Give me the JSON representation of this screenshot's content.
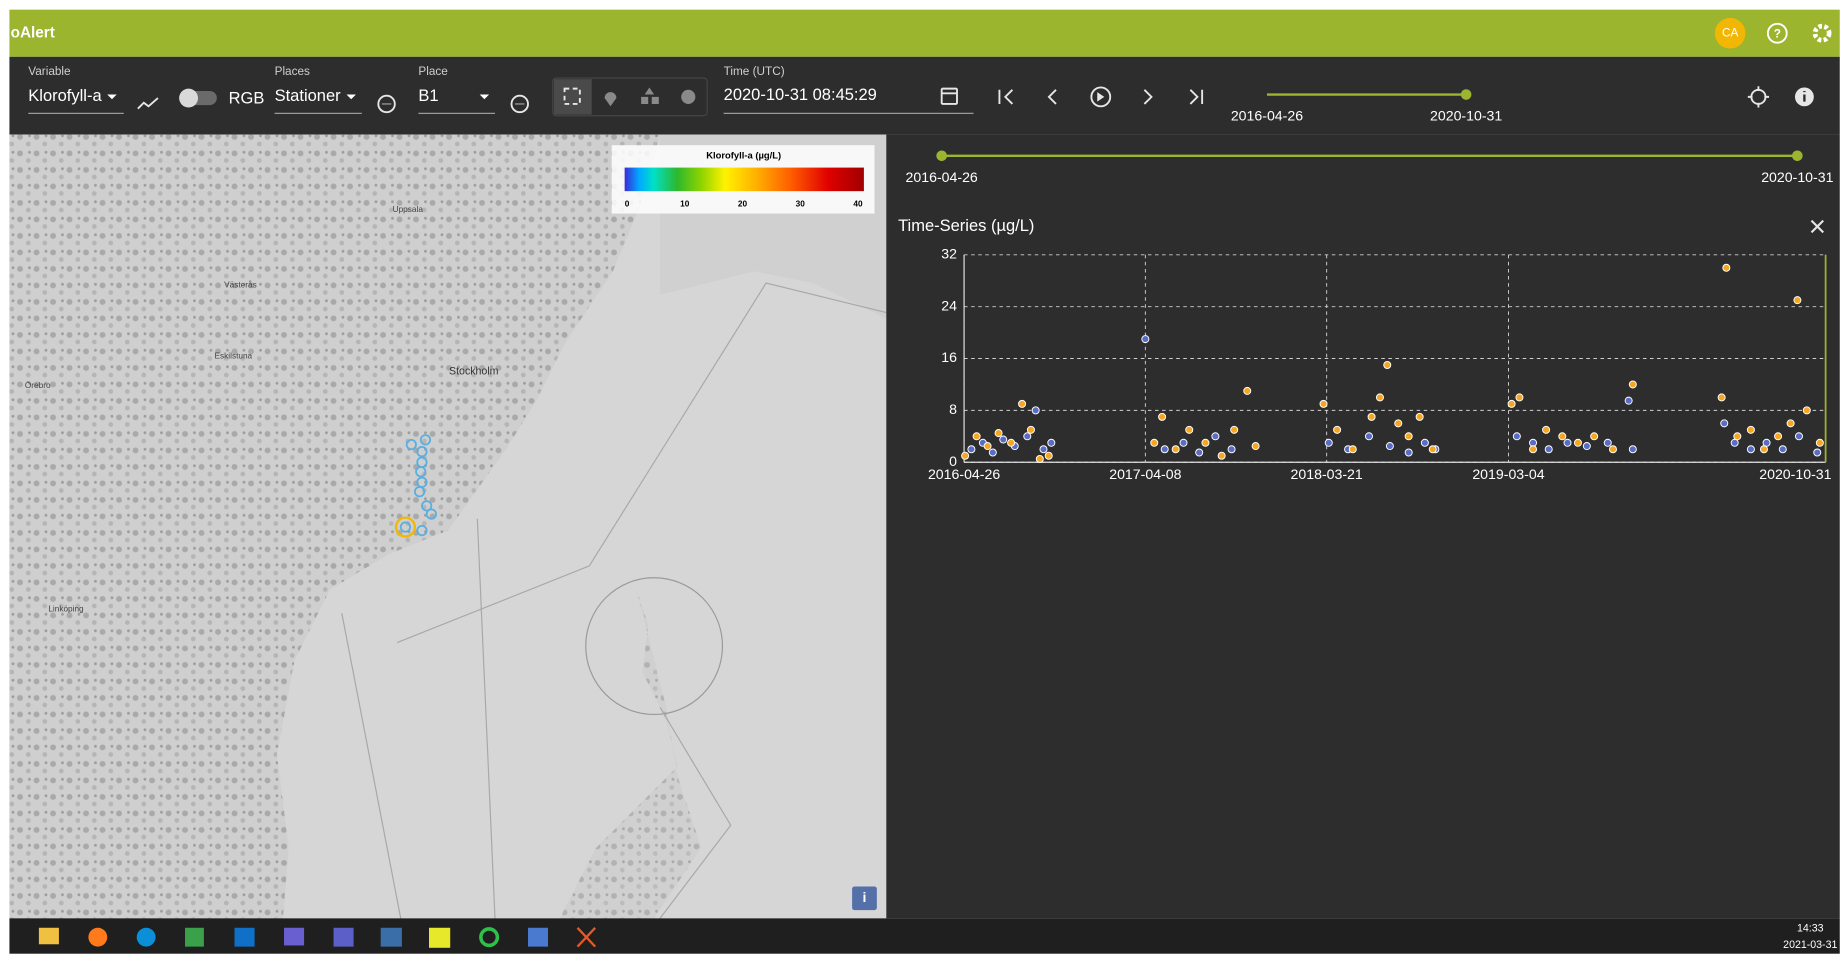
{
  "app": {
    "title": "oAlert",
    "avatar": "CA"
  },
  "toolbar": {
    "variable_label": "Variable",
    "variable": "Klorofyll-a",
    "rgb": "RGB",
    "places_label": "Places",
    "places": "Stationer",
    "place_label": "Place",
    "place": "B1",
    "time_label": "Time (UTC)",
    "time": "2020-10-31 08:45:29",
    "range_start": "2016-04-26",
    "range_end": "2020-10-31"
  },
  "map": {
    "legend": {
      "title": "Klorofyll-a (µg/L)",
      "ticks": [
        0,
        10,
        20,
        30,
        40
      ]
    },
    "labels": [
      "Uppsala",
      "Västerås",
      "Eskilstuna",
      "Örebro",
      "Stockholm",
      "Linköping"
    ]
  },
  "panel": {
    "range_start": "2016-04-26",
    "range_end": "2020-10-31"
  },
  "chart_data": {
    "type": "scatter",
    "title": "Time-Series (µg/L)",
    "xlim": [
      "2016-04-26",
      "2020-10-31"
    ],
    "xticks": [
      "2016-04-26",
      "2017-04-08",
      "2018-03-21",
      "2019-03-04",
      "2020-10-31"
    ],
    "ylim": [
      0,
      32
    ],
    "yticks": [
      0,
      8,
      16,
      24,
      32
    ],
    "grid": true,
    "series": [
      {
        "color": "#5a6cc4",
        "x": [
          "2016-05-10",
          "2016-06-01",
          "2016-06-20",
          "2016-07-10",
          "2016-08-01",
          "2016-08-25",
          "2016-09-10",
          "2016-09-25",
          "2016-10-10",
          "2017-04-08",
          "2017-05-15",
          "2017-06-20",
          "2017-07-20",
          "2017-08-20",
          "2017-09-20",
          "2018-03-25",
          "2018-05-01",
          "2018-06-10",
          "2018-07-20",
          "2018-08-25",
          "2018-09-25",
          "2018-10-15",
          "2019-03-20",
          "2019-04-20",
          "2019-05-20",
          "2019-06-25",
          "2019-08-01",
          "2019-09-10",
          "2019-10-20",
          "2019-10-28",
          "2020-04-20",
          "2020-05-10",
          "2020-06-10",
          "2020-07-10",
          "2020-08-10",
          "2020-09-10",
          "2020-10-15"
        ],
        "values": [
          2,
          3,
          1.5,
          3.5,
          2.5,
          4,
          8,
          2,
          3,
          19,
          2,
          3,
          1.5,
          4,
          2,
          3,
          2,
          4,
          2.5,
          1.5,
          3,
          2,
          4,
          3,
          2,
          3,
          2.5,
          3,
          9.5,
          2,
          6,
          3,
          2,
          3,
          2,
          4,
          1.5
        ]
      },
      {
        "color": "#f5a623",
        "x": [
          "2016-04-28",
          "2016-05-20",
          "2016-06-10",
          "2016-07-01",
          "2016-07-25",
          "2016-08-15",
          "2016-09-01",
          "2016-09-18",
          "2016-10-05",
          "2017-04-25",
          "2017-05-10",
          "2017-06-05",
          "2017-07-01",
          "2017-08-01",
          "2017-09-01",
          "2017-09-25",
          "2017-10-20",
          "2017-11-05",
          "2018-03-15",
          "2018-04-10",
          "2018-05-10",
          "2018-06-15",
          "2018-07-01",
          "2018-07-15",
          "2018-08-05",
          "2018-08-25",
          "2018-09-15",
          "2018-10-10",
          "2019-03-10",
          "2019-03-25",
          "2019-04-20",
          "2019-05-15",
          "2019-06-15",
          "2019-07-15",
          "2019-08-15",
          "2019-09-20",
          "2019-10-28",
          "2020-04-15",
          "2020-04-24",
          "2020-05-15",
          "2020-06-10",
          "2020-07-05",
          "2020-08-01",
          "2020-08-25",
          "2020-09-07",
          "2020-09-25",
          "2020-10-20"
        ],
        "values": [
          1,
          4,
          2.5,
          4.5,
          3,
          9,
          5,
          0.5,
          1,
          3,
          7,
          2,
          5,
          3,
          1,
          5,
          11,
          2.5,
          9,
          5,
          2,
          7,
          10,
          15,
          6,
          4,
          7,
          2,
          9,
          10,
          2,
          5,
          4,
          3,
          4,
          2,
          12,
          10,
          30,
          4,
          5,
          2,
          4,
          6,
          25,
          8,
          3
        ]
      }
    ]
  },
  "taskbar": {
    "time": "14:33",
    "date": "2021-03-31"
  }
}
